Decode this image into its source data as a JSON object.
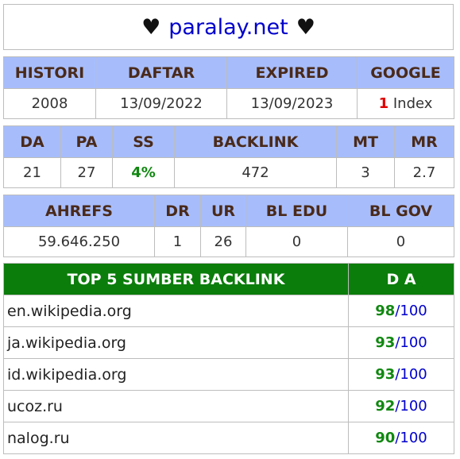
{
  "title": {
    "heart_left": "♥",
    "domain": "paralay.net",
    "heart_right": "♥"
  },
  "table1": {
    "headers": [
      "HISTORI",
      "DAFTAR",
      "EXPIRED",
      "GOOGLE"
    ],
    "histori": "2008",
    "daftar": "13/09/2022",
    "expired": "13/09/2023",
    "google_count": "1",
    "google_suffix": " Index"
  },
  "table2": {
    "headers": [
      "DA",
      "PA",
      "SS",
      "BACKLINK",
      "MT",
      "MR"
    ],
    "values": [
      "21",
      "27",
      "4%",
      "472",
      "3",
      "2.7"
    ]
  },
  "table3": {
    "headers": [
      "AHREFS",
      "DR",
      "UR",
      "BL EDU",
      "BL GOV"
    ],
    "values": [
      "59.646.250",
      "1",
      "26",
      "0",
      "0"
    ]
  },
  "top5": {
    "header_site": "TOP 5 SUMBER BACKLINK",
    "header_da": "D A",
    "sep": "/",
    "max": "100",
    "rows": [
      {
        "site": "en.wikipedia.org",
        "da": "98"
      },
      {
        "site": "ja.wikipedia.org",
        "da": "93"
      },
      {
        "site": "id.wikipedia.org",
        "da": "93"
      },
      {
        "site": "ucoz.ru",
        "da": "92"
      },
      {
        "site": "nalog.ru",
        "da": "90"
      }
    ]
  },
  "colors": {
    "header_blue": "#a7bdfb",
    "header_green": "#0b7d0b",
    "link_blue": "#0000cc",
    "value_green": "#118811",
    "value_red": "#e00000"
  }
}
